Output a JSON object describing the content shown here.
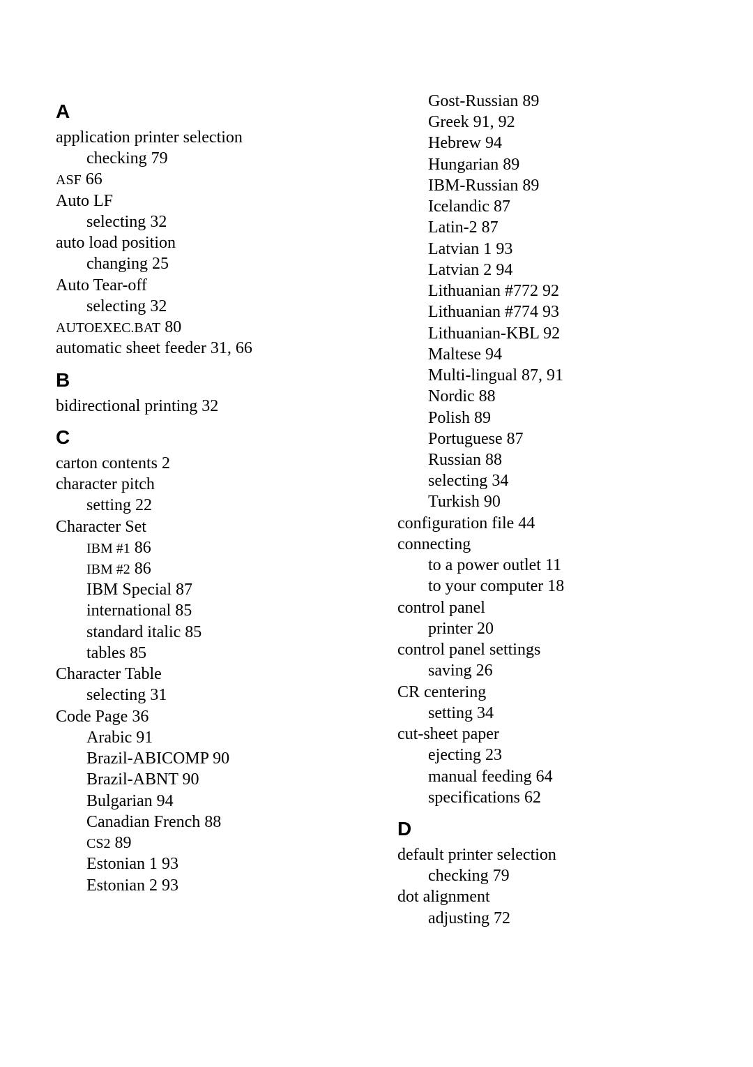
{
  "left": {
    "A": {
      "letter": "A",
      "entries": [
        {
          "level": 1,
          "text": "application printer selection"
        },
        {
          "level": 2,
          "text": "checking",
          "page": " 79"
        },
        {
          "level": 1,
          "text_small": "ASF",
          "page": " 66"
        },
        {
          "level": 1,
          "text": "Auto LF"
        },
        {
          "level": 2,
          "text": "selecting",
          "page": " 32"
        },
        {
          "level": 1,
          "text": "auto load position"
        },
        {
          "level": 2,
          "text": "changing",
          "page": " 25"
        },
        {
          "level": 1,
          "text": "Auto Tear-off"
        },
        {
          "level": 2,
          "text": "selecting",
          "page": " 32"
        },
        {
          "level": 1,
          "text_small": "AUTOEXEC.BAT",
          "page": " 80"
        },
        {
          "level": 1,
          "text": "automatic sheet feeder",
          "page": " 31, 66"
        }
      ]
    },
    "B": {
      "letter": "B",
      "entries": [
        {
          "level": 1,
          "text": "bidirectional printing",
          "page": " 32"
        }
      ]
    },
    "C": {
      "letter": "C",
      "entries": [
        {
          "level": 1,
          "text": "carton contents",
          "page": " 2"
        },
        {
          "level": 1,
          "text": "character pitch"
        },
        {
          "level": 2,
          "text": "setting",
          "page": " 22"
        },
        {
          "level": 1,
          "text": "Character Set"
        },
        {
          "level": 2,
          "text_small": "IBM #1",
          "page": " 86"
        },
        {
          "level": 2,
          "text_small": "IBM #2",
          "page": " 86"
        },
        {
          "level": 2,
          "text": "IBM Special",
          "page": " 87"
        },
        {
          "level": 2,
          "text": "international",
          "page": " 85"
        },
        {
          "level": 2,
          "text": "standard italic",
          "page": " 85"
        },
        {
          "level": 2,
          "text": "tables",
          "page": " 85"
        },
        {
          "level": 1,
          "text": "Character Table"
        },
        {
          "level": 2,
          "text": "selecting",
          "page": " 31"
        },
        {
          "level": 1,
          "text": "Code Page",
          "page": " 36"
        },
        {
          "level": 2,
          "text": "Arabic",
          "page": " 91"
        },
        {
          "level": 2,
          "text": "Brazil-ABICOMP",
          "page": " 90"
        },
        {
          "level": 2,
          "text": "Brazil-ABNT",
          "page": " 90"
        },
        {
          "level": 2,
          "text": "Bulgarian",
          "page": " 94"
        },
        {
          "level": 2,
          "text": "Canadian French",
          "page": " 88"
        },
        {
          "level": 2,
          "text_small": "CS2",
          "page": " 89"
        },
        {
          "level": 2,
          "text": "Estonian 1",
          "page": " 93"
        },
        {
          "level": 2,
          "text": "Estonian 2",
          "page": " 93"
        }
      ]
    }
  },
  "right": {
    "cont": {
      "entries": [
        {
          "level": 2,
          "text": "Gost-Russian",
          "page": " 89"
        },
        {
          "level": 2,
          "text": "Greek",
          "page": " 91, 92"
        },
        {
          "level": 2,
          "text": "Hebrew",
          "page": " 94"
        },
        {
          "level": 2,
          "text": "Hungarian",
          "page": " 89"
        },
        {
          "level": 2,
          "text": "IBM-Russian",
          "page": " 89"
        },
        {
          "level": 2,
          "text": "Icelandic",
          "page": " 87"
        },
        {
          "level": 2,
          "text": "Latin-2",
          "page": " 87"
        },
        {
          "level": 2,
          "text": "Latvian 1",
          "page": " 93"
        },
        {
          "level": 2,
          "text": "Latvian 2",
          "page": " 94"
        },
        {
          "level": 2,
          "text": "Lithuanian #772",
          "page": " 92"
        },
        {
          "level": 2,
          "text": "Lithuanian #774",
          "page": " 93"
        },
        {
          "level": 2,
          "text": "Lithuanian-KBL",
          "page": " 92"
        },
        {
          "level": 2,
          "text": "Maltese",
          "page": " 94"
        },
        {
          "level": 2,
          "text": "Multi-lingual",
          "page": " 87, 91"
        },
        {
          "level": 2,
          "text": "Nordic",
          "page": " 88"
        },
        {
          "level": 2,
          "text": "Polish",
          "page": " 89"
        },
        {
          "level": 2,
          "text": "Portuguese",
          "page": " 87"
        },
        {
          "level": 2,
          "text": "Russian",
          "page": " 88"
        },
        {
          "level": 2,
          "text": "selecting",
          "page": " 34"
        },
        {
          "level": 2,
          "text": "Turkish",
          "page": " 90"
        },
        {
          "level": 1,
          "text": "configuration file",
          "page": " 44"
        },
        {
          "level": 1,
          "text": "connecting"
        },
        {
          "level": 2,
          "text": "to a power outlet",
          "page": " 11"
        },
        {
          "level": 2,
          "text": "to your computer",
          "page": " 18"
        },
        {
          "level": 1,
          "text": "control panel"
        },
        {
          "level": 2,
          "text": "printer",
          "page": " 20"
        },
        {
          "level": 1,
          "text": "control panel settings"
        },
        {
          "level": 2,
          "text": "saving",
          "page": " 26"
        },
        {
          "level": 1,
          "text": "CR centering"
        },
        {
          "level": 2,
          "text": "setting",
          "page": " 34"
        },
        {
          "level": 1,
          "text": "cut-sheet paper"
        },
        {
          "level": 2,
          "text": "ejecting",
          "page": " 23"
        },
        {
          "level": 2,
          "text": "manual feeding",
          "page": " 64"
        },
        {
          "level": 2,
          "text": "specifications",
          "page": " 62"
        }
      ]
    },
    "D": {
      "letter": "D",
      "entries": [
        {
          "level": 1,
          "text": "default printer selection"
        },
        {
          "level": 2,
          "text": "checking",
          "page": " 79"
        },
        {
          "level": 1,
          "text": "dot alignment"
        },
        {
          "level": 2,
          "text": "adjusting",
          "page": " 72"
        }
      ]
    }
  }
}
